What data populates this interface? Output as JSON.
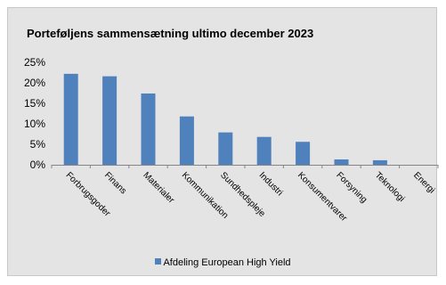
{
  "chart_data": {
    "type": "bar",
    "title": "Porteføljens sammensætning ultimo december 2023",
    "categories": [
      "Forbrugsgoder",
      "Finans",
      "Materialer",
      "Kommunikation",
      "Sundhedspleje",
      "Industri",
      "Konsumentvarer",
      "Forsyning",
      "Teknologi",
      "Energi"
    ],
    "series": [
      {
        "name": "Afdeling European High Yield",
        "values": [
          22.2,
          21.6,
          17.4,
          11.8,
          7.9,
          6.8,
          5.6,
          1.3,
          1.1,
          0.0
        ]
      }
    ],
    "ylim": [
      0,
      25
    ],
    "yticks": [
      0,
      5,
      10,
      15,
      20,
      25
    ],
    "ytick_labels": [
      "0%",
      "5%",
      "10%",
      "15%",
      "20%",
      "25%"
    ],
    "xlabel": "",
    "ylabel": "",
    "grid": false,
    "legend_position": "bottom",
    "bar_color": "#4f81bd"
  }
}
